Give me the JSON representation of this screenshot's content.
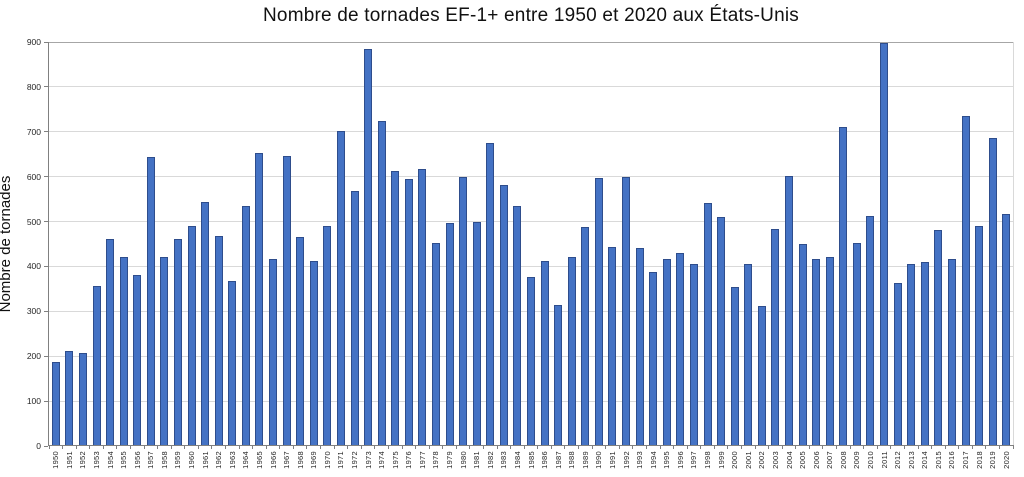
{
  "chart_data": {
    "type": "bar",
    "title": "Nombre de tornades EF-1+ entre 1950 et 2020 aux États-Unis",
    "xlabel": "",
    "ylabel": "Nombre de tornades",
    "ylim": [
      0,
      900
    ],
    "y_ticks": [
      0,
      100,
      200,
      300,
      400,
      500,
      600,
      700,
      800,
      900
    ],
    "grid": "horizontal",
    "legend": "none",
    "bar_fill_color": "#4472c4",
    "bar_border_color": "#2e4d8c",
    "gridline_color": "#d9d9d9",
    "axis_color": "#808080",
    "categories": [
      "1950",
      "1951",
      "1952",
      "1953",
      "1954",
      "1955",
      "1956",
      "1957",
      "1958",
      "1959",
      "1960",
      "1961",
      "1962",
      "1963",
      "1964",
      "1965",
      "1966",
      "1967",
      "1968",
      "1969",
      "1970",
      "1971",
      "1972",
      "1973",
      "1974",
      "1975",
      "1976",
      "1977",
      "1978",
      "1979",
      "1980",
      "1981",
      "1982",
      "1983",
      "1984",
      "1985",
      "1986",
      "1987",
      "1988",
      "1989",
      "1990",
      "1991",
      "1992",
      "1993",
      "1994",
      "1995",
      "1996",
      "1997",
      "1998",
      "1999",
      "2000",
      "2001",
      "2002",
      "2003",
      "2004",
      "2005",
      "2006",
      "2007",
      "2008",
      "2009",
      "2010",
      "2011",
      "2012",
      "2013",
      "2014",
      "2015",
      "2016",
      "2017",
      "2018",
      "2019",
      "2020"
    ],
    "values": [
      185,
      210,
      205,
      355,
      460,
      420,
      378,
      642,
      418,
      458,
      488,
      542,
      465,
      365,
      533,
      650,
      415,
      644,
      463,
      410,
      489,
      700,
      565,
      883,
      722,
      611,
      592,
      615,
      450,
      495,
      597,
      498,
      672,
      580,
      533,
      375,
      410,
      313,
      418,
      485,
      595,
      442,
      597,
      438,
      386,
      415,
      428,
      403,
      540,
      507,
      352,
      403,
      310,
      481,
      600,
      448,
      415,
      420,
      708,
      450,
      510,
      895,
      360,
      403,
      408,
      478,
      415,
      734,
      488,
      684,
      515
    ]
  }
}
